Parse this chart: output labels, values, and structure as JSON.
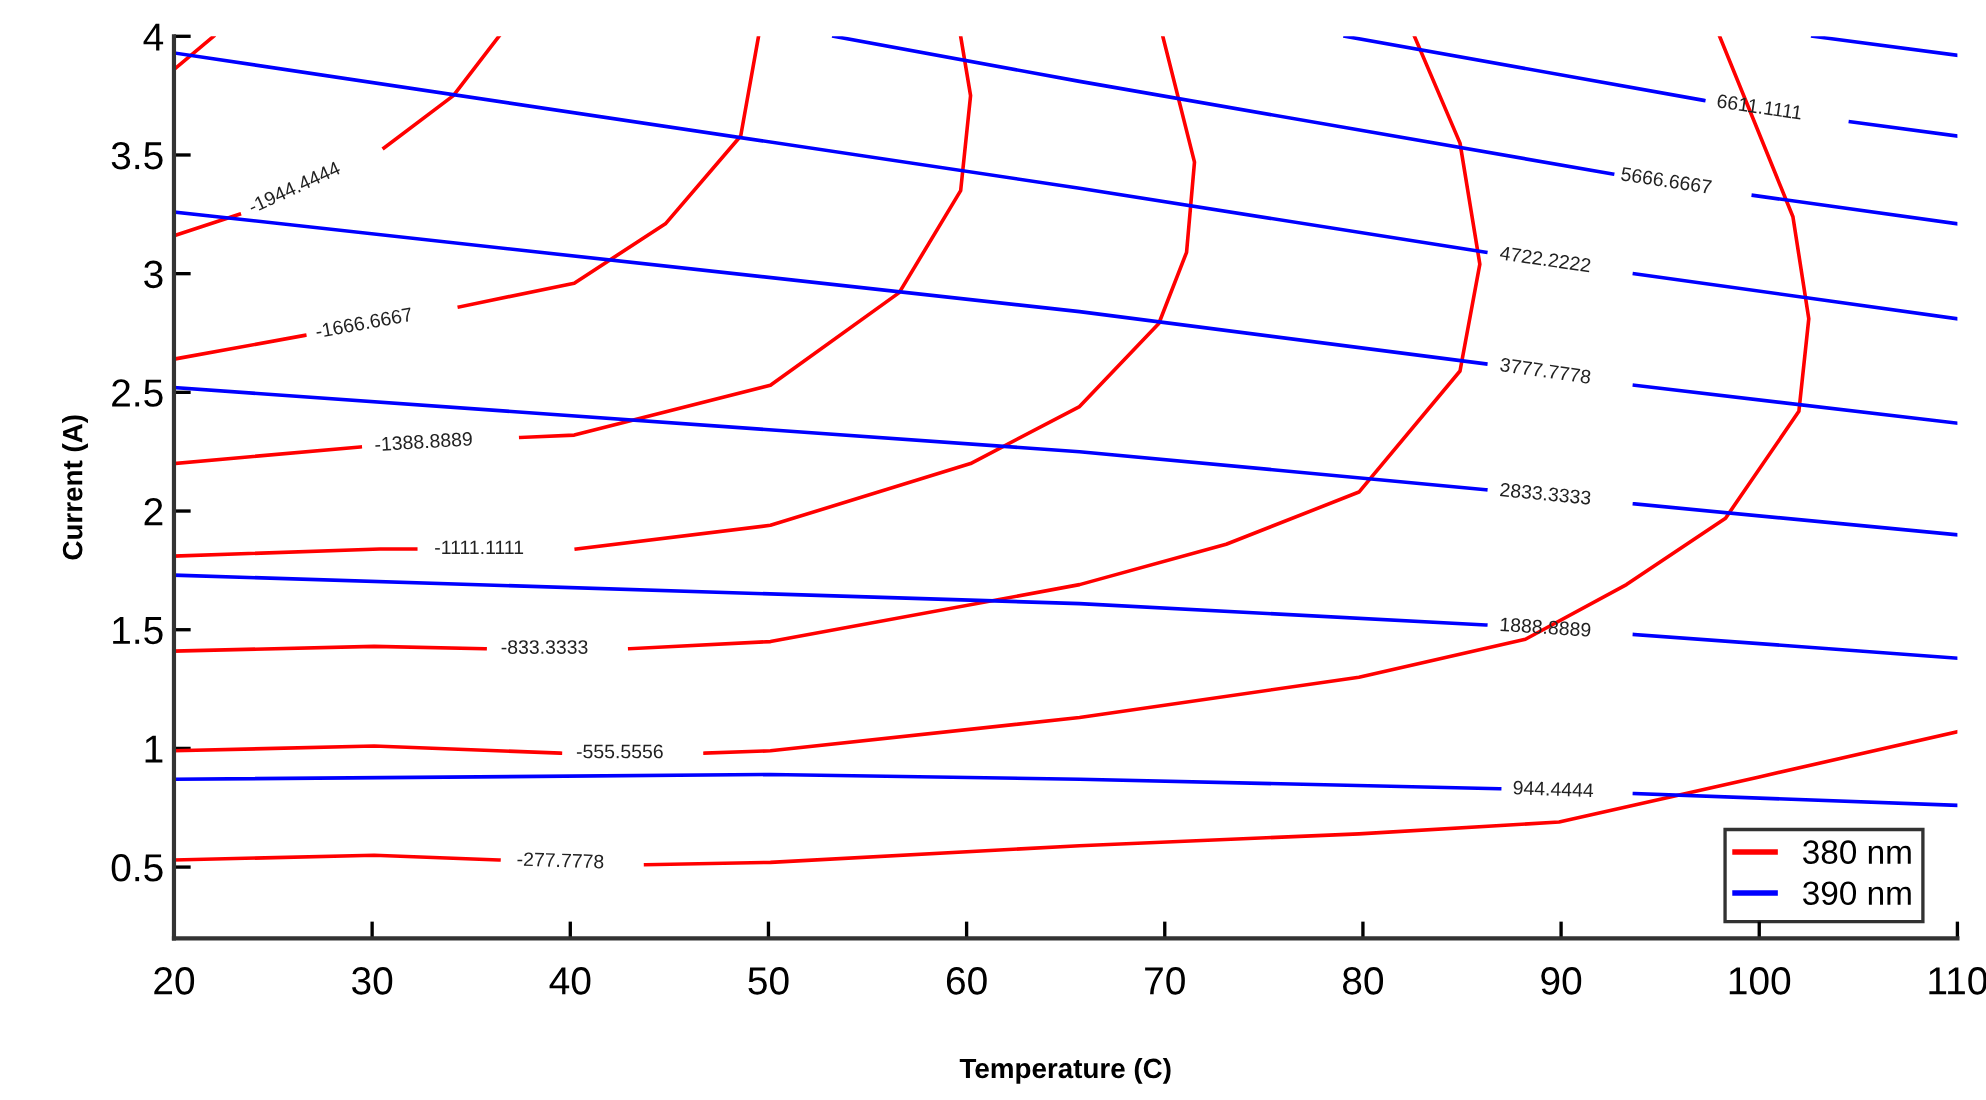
{
  "chart_data": {
    "type": "line",
    "xlabel": "Temperature (C)",
    "ylabel": "Current (A)",
    "xlim": [
      20,
      110
    ],
    "ylim": [
      0.2,
      4
    ],
    "xticks": [
      20,
      30,
      40,
      50,
      60,
      70,
      80,
      90,
      100,
      110
    ],
    "yticks": [
      0.5,
      1,
      1.5,
      2,
      2.5,
      3,
      3.5,
      4
    ],
    "grid": false,
    "legend": "bottom right",
    "marker": "none",
    "line_style": "solid",
    "series": [
      {
        "name": "380 nm",
        "color": "#ff0000",
        "x": [
          20,
          30.1,
          36.4,
          39.5,
          43.8,
          50.1,
          65.7,
          79.8,
          89.9,
          100.0,
          110
        ],
        "values": [
          0.53,
          0.55,
          0.53,
          null,
          0.51,
          0.52,
          0.59,
          0.64,
          0.69,
          0.88,
          1.07
        ]
      },
      {
        "color": "#ff0000",
        "x": [
          20,
          30.1,
          39.5,
          42.5,
          46.8,
          50.1,
          65.7,
          79.8,
          88.2,
          93.3,
          98.3,
          102.0,
          102.5,
          101.7,
          98.0
        ],
        "values": [
          0.99,
          1.01,
          0.98,
          null,
          0.98,
          0.99,
          1.13,
          1.3,
          1.46,
          1.69,
          1.97,
          2.42,
          2.81,
          3.24,
          4.0
        ]
      },
      {
        "color": "#ff0000",
        "x": [
          20,
          30.1,
          35.7,
          38.7,
          43.0,
          50.1,
          65.7,
          73.1,
          79.8,
          84.9,
          85.9,
          84.9,
          82.6
        ],
        "values": [
          1.41,
          1.43,
          1.42,
          null,
          1.42,
          1.45,
          1.69,
          1.86,
          2.08,
          2.59,
          3.04,
          3.55,
          4.0
        ]
      },
      {
        "color": "#ff0000",
        "x": [
          20,
          30.4,
          32.2,
          35.4,
          40.3,
          50.1,
          60.2,
          65.7,
          69.7,
          71.1,
          71.5,
          69.9
        ],
        "values": [
          1.81,
          1.84,
          1.84,
          null,
          1.84,
          1.94,
          2.2,
          2.44,
          2.79,
          3.09,
          3.47,
          4.0
        ]
      },
      {
        "color": "#ff0000",
        "x": [
          20,
          29.4,
          32.6,
          37.5,
          40.2,
          50.1,
          56.6,
          59.7,
          60.2,
          59.7
        ],
        "values": [
          2.2,
          2.27,
          null,
          2.31,
          2.32,
          2.53,
          2.92,
          3.35,
          3.75,
          4.0
        ]
      },
      {
        "color": "#ff0000",
        "x": [
          20,
          26.6,
          29.6,
          34.4,
          40.2,
          44.8,
          48.6,
          49.5
        ],
        "values": [
          2.64,
          2.74,
          null,
          2.86,
          2.96,
          3.21,
          3.58,
          4.0
        ]
      },
      {
        "color": "#ff0000",
        "x": [
          20,
          23.3,
          26.1,
          30.6,
          34.1,
          36.4
        ],
        "values": [
          3.16,
          3.25,
          null,
          3.53,
          3.75,
          4.0
        ]
      },
      {
        "color": "#ff0000",
        "x": [
          20,
          22.0
        ],
        "values": [
          3.86,
          4.0
        ]
      },
      {
        "name": "390 nm",
        "color": "#0000ff",
        "x": [
          20,
          50.1,
          65.7,
          86.9,
          89.6,
          93.7,
          110
        ],
        "values": [
          0.87,
          0.89,
          0.87,
          0.83,
          null,
          0.81,
          0.76
        ]
      },
      {
        "color": "#0000ff",
        "x": [
          20,
          65.7,
          86.2,
          89.2,
          93.7,
          110
        ],
        "values": [
          1.73,
          1.61,
          1.52,
          null,
          1.48,
          1.38
        ]
      },
      {
        "color": "#0000ff",
        "x": [
          20,
          65.7,
          86.2,
          89.2,
          93.7,
          110
        ],
        "values": [
          2.52,
          2.25,
          2.09,
          null,
          2.03,
          1.9
        ]
      },
      {
        "color": "#0000ff",
        "x": [
          20,
          65.7,
          86.2,
          89.2,
          93.7,
          110
        ],
        "values": [
          3.26,
          2.84,
          2.62,
          null,
          2.53,
          2.37
        ]
      },
      {
        "color": "#0000ff",
        "x": [
          20,
          65.7,
          86.2,
          89.2,
          93.7,
          110
        ],
        "values": [
          3.93,
          3.36,
          3.09,
          null,
          3.0,
          2.81
        ]
      },
      {
        "color": "#0000ff",
        "x": [
          53.3,
          65.7,
          92.6,
          95.3,
          99.7,
          110
        ],
        "values": [
          4.0,
          3.81,
          3.42,
          null,
          3.33,
          3.21
        ]
      },
      {
        "color": "#0000ff",
        "x": [
          79.1,
          97.2,
          100.0,
          104.6,
          110
        ],
        "values": [
          4.0,
          3.73,
          null,
          3.64,
          3.58
        ]
      },
      {
        "color": "#0000ff",
        "x": [
          102.7,
          110
        ],
        "values": [
          4.0,
          3.92
        ]
      }
    ],
    "annotations": [
      {
        "text": "-277.7778",
        "x": 36.4,
        "y": 0.53
      },
      {
        "text": "-555.5556",
        "x": 39.5,
        "y": 0.98
      },
      {
        "text": "-833.3333",
        "x": 35.7,
        "y": 1.42
      },
      {
        "text": "-1111.1111",
        "x": 32.2,
        "y": 1.84
      },
      {
        "text": "-1388.8889",
        "x": 29.4,
        "y": 2.27
      },
      {
        "text": "-1666.6667",
        "x": 26.6,
        "y": 2.74
      },
      {
        "text": "-1944.4444",
        "x": 23.3,
        "y": 3.25
      },
      {
        "text": "944.4444",
        "x": 86.9,
        "y": 0.83
      },
      {
        "text": "1888.8889",
        "x": 86.2,
        "y": 1.52
      },
      {
        "text": "2833.3333",
        "x": 86.2,
        "y": 2.09
      },
      {
        "text": "3777.7778",
        "x": 86.2,
        "y": 2.62
      },
      {
        "text": "4722.2222",
        "x": 86.2,
        "y": 3.09
      },
      {
        "text": "5666.6667",
        "x": 92.6,
        "y": 3.42
      },
      {
        "text": "6611.1111",
        "x": 97.2,
        "y": 3.73
      }
    ]
  }
}
